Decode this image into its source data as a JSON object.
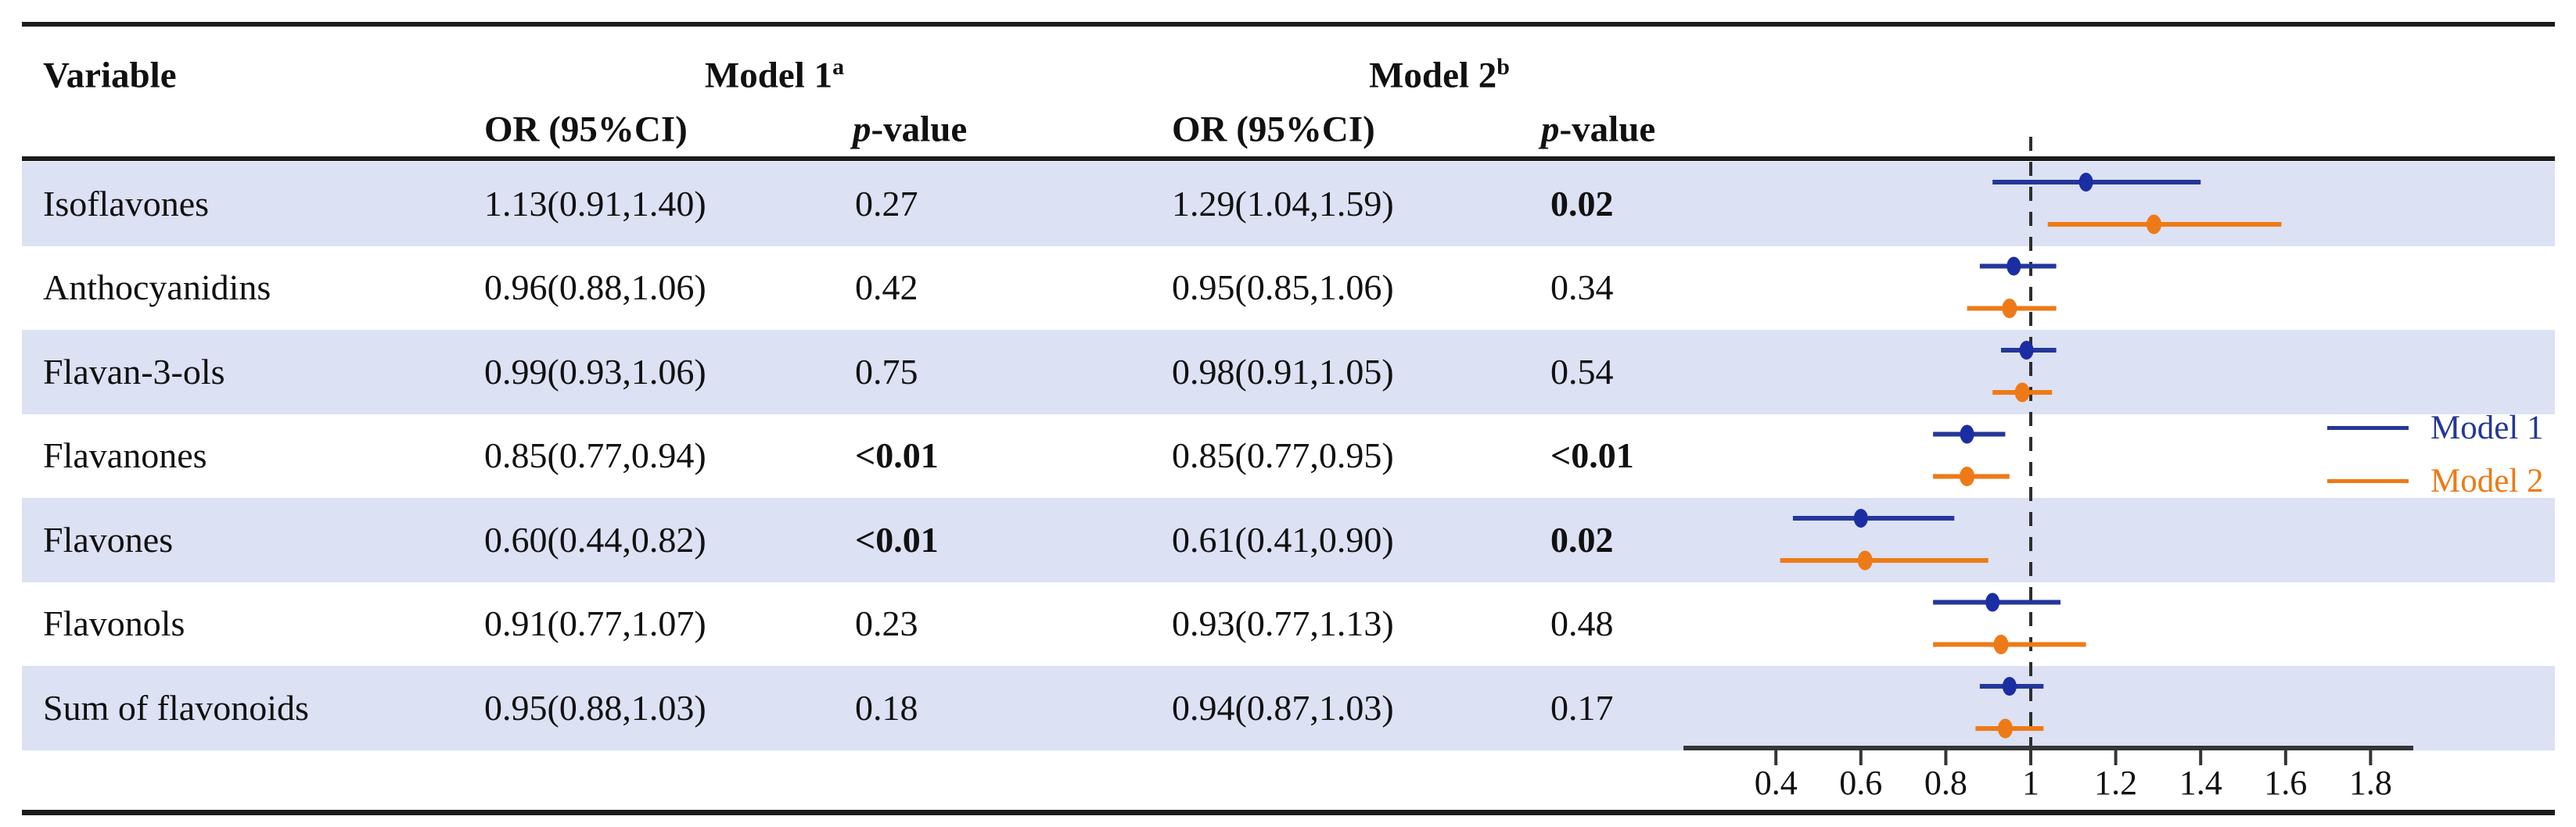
{
  "header": {
    "variable": "Variable",
    "model1": "Model 1",
    "model1_sup": "a",
    "model2": "Model 2",
    "model2_sup": "b",
    "or_ci": "OR (95%CI)",
    "p_value": "p-value"
  },
  "rows": [
    {
      "variable": "Isoflavones",
      "m1": {
        "or_ci": "1.13(0.91,1.40)",
        "p": "0.27",
        "p_bold": false,
        "est": 1.13,
        "lo": 0.91,
        "hi": 1.4
      },
      "m2": {
        "or_ci": "1.29(1.04,1.59)",
        "p": "0.02",
        "p_bold": true,
        "est": 1.29,
        "lo": 1.04,
        "hi": 1.59
      }
    },
    {
      "variable": "Anthocyanidins",
      "m1": {
        "or_ci": "0.96(0.88,1.06)",
        "p": "0.42",
        "p_bold": false,
        "est": 0.96,
        "lo": 0.88,
        "hi": 1.06
      },
      "m2": {
        "or_ci": "0.95(0.85,1.06)",
        "p": "0.34",
        "p_bold": false,
        "est": 0.95,
        "lo": 0.85,
        "hi": 1.06
      }
    },
    {
      "variable": "Flavan-3-ols",
      "m1": {
        "or_ci": "0.99(0.93,1.06)",
        "p": "0.75",
        "p_bold": false,
        "est": 0.99,
        "lo": 0.93,
        "hi": 1.06
      },
      "m2": {
        "or_ci": "0.98(0.91,1.05)",
        "p": "0.54",
        "p_bold": false,
        "est": 0.98,
        "lo": 0.91,
        "hi": 1.05
      }
    },
    {
      "variable": "Flavanones",
      "m1": {
        "or_ci": "0.85(0.77,0.94)",
        "p": "<0.01",
        "p_bold": true,
        "est": 0.85,
        "lo": 0.77,
        "hi": 0.94
      },
      "m2": {
        "or_ci": "0.85(0.77,0.95)",
        "p": "<0.01",
        "p_bold": true,
        "est": 0.85,
        "lo": 0.77,
        "hi": 0.95
      }
    },
    {
      "variable": "Flavones",
      "m1": {
        "or_ci": "0.60(0.44,0.82)",
        "p": "<0.01",
        "p_bold": true,
        "est": 0.6,
        "lo": 0.44,
        "hi": 0.82
      },
      "m2": {
        "or_ci": "0.61(0.41,0.90)",
        "p": "0.02",
        "p_bold": true,
        "est": 0.61,
        "lo": 0.41,
        "hi": 0.9
      }
    },
    {
      "variable": "Flavonols",
      "m1": {
        "or_ci": "0.91(0.77,1.07)",
        "p": "0.23",
        "p_bold": false,
        "est": 0.91,
        "lo": 0.77,
        "hi": 1.07
      },
      "m2": {
        "or_ci": "0.93(0.77,1.13)",
        "p": "0.48",
        "p_bold": false,
        "est": 0.93,
        "lo": 0.77,
        "hi": 1.13
      }
    },
    {
      "variable": "Sum of flavonoids",
      "m1": {
        "or_ci": "0.95(0.88,1.03)",
        "p": "0.18",
        "p_bold": false,
        "est": 0.95,
        "lo": 0.88,
        "hi": 1.03
      },
      "m2": {
        "or_ci": "0.94(0.87,1.03)",
        "p": "0.17",
        "p_bold": false,
        "est": 0.94,
        "lo": 0.87,
        "hi": 1.03
      }
    }
  ],
  "legend": {
    "items": [
      {
        "label": "Model 1",
        "color": "#24379a"
      },
      {
        "label": "Model 2",
        "color": "#ee7a17"
      }
    ]
  },
  "chart_data": {
    "type": "forest",
    "categories": [
      "Isoflavones",
      "Anthocyanidins",
      "Flavan-3-ols",
      "Flavanones",
      "Flavones",
      "Flavonols",
      "Sum of flavonoids"
    ],
    "series": [
      {
        "name": "Model 1",
        "or": [
          1.13,
          0.96,
          0.99,
          0.85,
          0.6,
          0.91,
          0.95
        ],
        "low": [
          0.91,
          0.88,
          0.93,
          0.77,
          0.44,
          0.77,
          0.88
        ],
        "high": [
          1.4,
          1.06,
          1.06,
          0.94,
          0.82,
          1.07,
          1.03
        ]
      },
      {
        "name": "Model 2",
        "or": [
          1.29,
          0.95,
          0.98,
          0.85,
          0.61,
          0.93,
          0.94
        ],
        "low": [
          1.04,
          0.85,
          0.91,
          0.77,
          0.41,
          0.77,
          0.87
        ],
        "high": [
          1.59,
          1.06,
          1.05,
          0.95,
          0.9,
          1.13,
          1.03
        ]
      }
    ],
    "x_ticks": [
      "0.4",
      "0.6",
      "0.8",
      "1",
      "1.2",
      "1.4",
      "1.6",
      "1.8"
    ],
    "x_tick_values": [
      0.4,
      0.6,
      0.8,
      1.0,
      1.2,
      1.4,
      1.6,
      1.8
    ],
    "reference_line": 1.0,
    "x_range": [
      0.2,
      1.9
    ],
    "legend_position": "right",
    "grid": false
  },
  "colors": {
    "model1": "#24379a",
    "model1_dot": "#1b2da3",
    "model2": "#ee7a17",
    "band": "#dce1f3",
    "rule": "#1c1c1c",
    "axis": "#2e2e2e"
  }
}
